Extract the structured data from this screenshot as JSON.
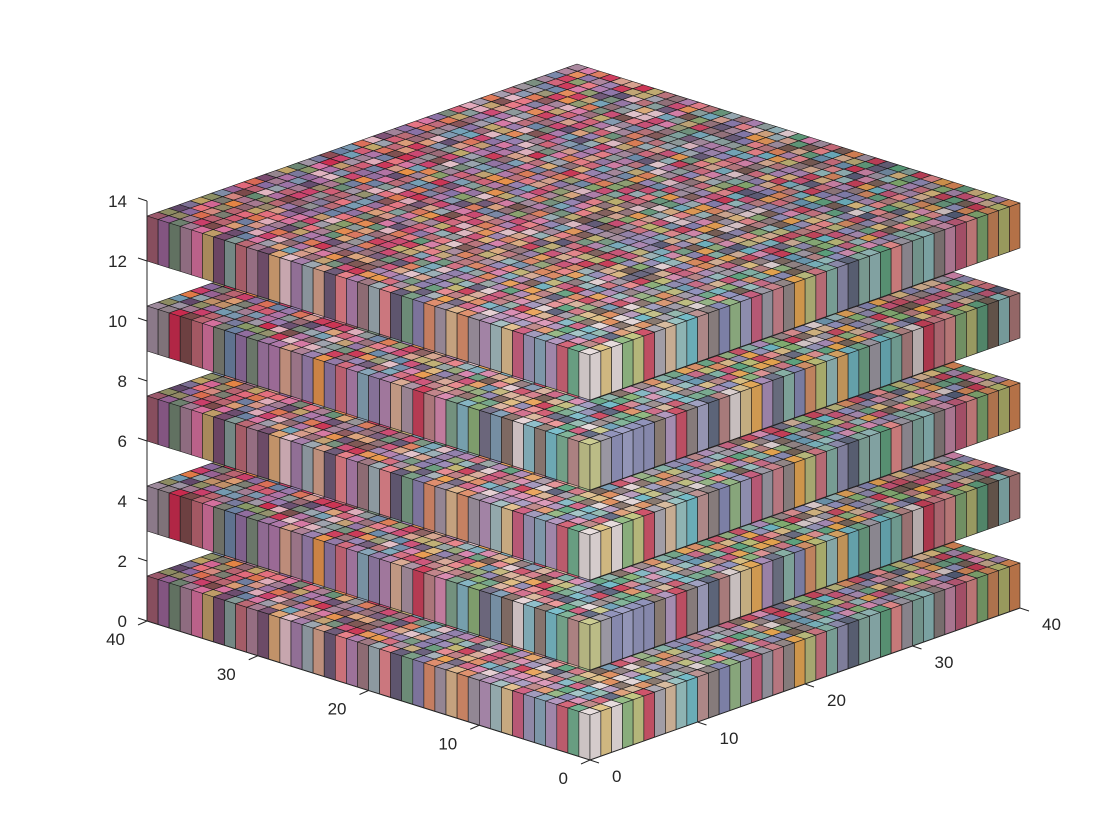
{
  "chart_data": {
    "type": "3d-voxel-stack",
    "title": "",
    "xlabel": "",
    "ylabel": "",
    "zlabel": "",
    "x_ticks": [
      0,
      10,
      20,
      30,
      40
    ],
    "y_ticks": [
      0,
      10,
      20,
      30,
      40
    ],
    "z_ticks": [
      0,
      2,
      4,
      6,
      8,
      10,
      12,
      14
    ],
    "xlim": [
      0,
      40
    ],
    "ylim": [
      0,
      40
    ],
    "zlim": [
      0,
      14
    ],
    "grid_size": [
      40,
      40
    ],
    "layers": [
      {
        "z_bottom": 0,
        "z_top": 1.5
      },
      {
        "z_bottom": 3,
        "z_top": 4.5
      },
      {
        "z_bottom": 6,
        "z_top": 7.5
      },
      {
        "z_bottom": 9,
        "z_top": 10.5
      },
      {
        "z_bottom": 12,
        "z_top": 13.5
      }
    ],
    "grid": false,
    "legend": "none",
    "colors": {
      "near_corner": "#e8dede",
      "left_edge_end": "#c83a66",
      "right_edge_end": "#7a6e6e",
      "far_corner": "#e07aa0"
    },
    "palette": [
      "#e8dede",
      "#c9203f",
      "#5c4a3a",
      "#d8b48a",
      "#e0c070",
      "#b8c060",
      "#70b060",
      "#6ab0a0",
      "#80c0c0",
      "#4a90b0",
      "#3a4a6a",
      "#7078b0",
      "#8088c0",
      "#a080b8",
      "#d880b0",
      "#c83a66",
      "#f08080",
      "#d06070",
      "#b07070",
      "#7a6e6e",
      "#e08040",
      "#f0a030",
      "#50b8c8",
      "#40a070",
      "#9090a0"
    ]
  }
}
